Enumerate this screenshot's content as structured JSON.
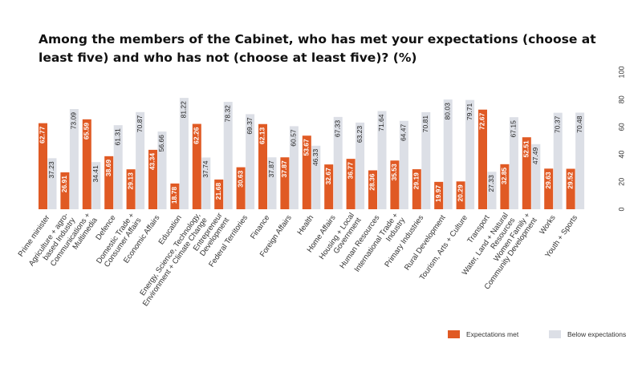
{
  "chart_data": {
    "type": "bar",
    "title": "Among the members of the Cabinet, who has met your expectations (choose at least five) and who has not (choose at least five)? (%)",
    "xlabel": "",
    "ylabel": "",
    "ylim": [
      0,
      100
    ],
    "yticks": [
      "0",
      "20",
      "40",
      "60",
      "80",
      "100"
    ],
    "grid": false,
    "legend_position": "bottom-right",
    "categories": [
      "Prime minister",
      "Agriculture + agro-based Industry",
      "Communications + Multimedia",
      "Defence",
      "Domestic Trade + Consumer Affairs",
      "Economic Affairs",
      "Education",
      "Energy, Science, Technology, Environment + Climate Change",
      "Entrepreneur Development",
      "Federal Territories",
      "Finance",
      "Foreign Affairs",
      "Health",
      "Home Affairs",
      "Housing + Local Government",
      "Human Resources",
      "International Trade + Industry",
      "Primary Industries",
      "Rural Development",
      "Tourism, Arts + Culture",
      "Transport",
      "Water, Land + Natural Resources",
      "Women Family + Community Development",
      "Works",
      "Youth + Sports"
    ],
    "category_lines": [
      [
        "Prime minister"
      ],
      [
        "Agriculture + agro-",
        "based Industry"
      ],
      [
        "Communications +",
        "Multimedia"
      ],
      [
        "Defence"
      ],
      [
        "Domestic Trade +",
        "Consumer Affairs"
      ],
      [
        "Economic Affairs"
      ],
      [
        "Education"
      ],
      [
        "Energy, Science, Technology,",
        "Environment + Climate Change"
      ],
      [
        "Entrepreneur",
        "Development"
      ],
      [
        "Federal Territories"
      ],
      [
        "Finance"
      ],
      [
        "Foreign Affairs"
      ],
      [
        "Health"
      ],
      [
        "Home Affairs"
      ],
      [
        "Housing + Local",
        "Government"
      ],
      [
        "Human Resources"
      ],
      [
        "International Trade +",
        "Industry"
      ],
      [
        "Primary Industries"
      ],
      [
        "Rural Development"
      ],
      [
        "Tourism, Arts + Culture"
      ],
      [
        "Transport"
      ],
      [
        "Water, Land + Natural",
        "Resources"
      ],
      [
        "Women Family +",
        "Community Development"
      ],
      [
        "Works"
      ],
      [
        "Youth + Sports"
      ]
    ],
    "series": [
      {
        "name": "Expectations met",
        "color": "#e05a24",
        "values": [
          62.77,
          26.91,
          65.59,
          38.69,
          29.13,
          43.34,
          18.78,
          62.26,
          21.68,
          30.63,
          62.13,
          37.87,
          53.67,
          32.67,
          36.77,
          28.36,
          35.53,
          29.19,
          19.97,
          20.29,
          72.67,
          32.85,
          52.51,
          29.63,
          29.52
        ],
        "labels": [
          "62.77",
          "26.91",
          "65.59",
          "38.69",
          "29.13",
          "43.34",
          "18.78",
          "62.26",
          "21.68",
          "30.63",
          "62.13",
          "37.87",
          "53.67",
          "32.67",
          "36.77",
          "28.36",
          "35.53",
          "29.19",
          "19.97",
          "20.29",
          "72.67",
          "32.85",
          "52.51",
          "29.63",
          "29.52"
        ]
      },
      {
        "name": "Below expectations",
        "color": "#dcdfe6",
        "values": [
          37.23,
          73.09,
          34.41,
          61.31,
          70.87,
          56.66,
          81.22,
          37.74,
          78.32,
          69.37,
          37.87,
          60.57,
          46.33,
          67.33,
          63.23,
          71.64,
          64.47,
          70.81,
          80.03,
          79.71,
          27.33,
          67.15,
          47.49,
          70.37,
          70.48
        ],
        "labels": [
          "37.23",
          "73.09",
          "34.41",
          "61.31",
          "70.87",
          "56.66",
          "81.22",
          "37.74",
          "78.32",
          "69.37",
          "37.87",
          "60.57",
          "46.33",
          "67.33",
          "63.23",
          "71.64",
          "64.47",
          "70.81",
          "80.03",
          "79.71",
          "27.33",
          "67.15",
          "47.49",
          "70.37",
          "70.48"
        ]
      }
    ]
  },
  "legend": {
    "met_label": "Expectations met",
    "below_label": "Below expectations",
    "met_color": "#e05a24",
    "below_color": "#dcdfe6"
  }
}
